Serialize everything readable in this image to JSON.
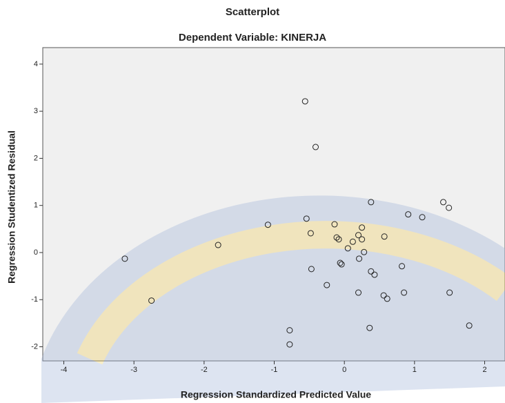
{
  "chart_data": {
    "type": "scatter",
    "title": "Scatterplot",
    "subtitle": "Dependent Variable: KINERJA",
    "x_label": "Regression Standardized Predicted Value",
    "y_label": "Regression Studentized Residual",
    "xlim": [
      -4.3,
      2.29
    ],
    "ylim": [
      -2.3,
      4.35
    ],
    "xticks": [
      -4,
      -3,
      -2,
      -1,
      0,
      1,
      2
    ],
    "yticks": [
      -2,
      -1,
      0,
      1,
      2,
      3,
      4
    ],
    "grid": false,
    "color": "#222222",
    "x": [
      -3.13,
      -2.75,
      -1.8,
      -1.09,
      -0.78,
      -0.78,
      -0.56,
      -0.41,
      -0.54,
      -0.48,
      -0.47,
      -0.14,
      -0.11,
      -0.08,
      -0.06,
      -0.04,
      -0.25,
      0.05,
      0.12,
      0.2,
      0.25,
      0.25,
      0.28,
      0.21,
      0.2,
      0.38,
      0.38,
      0.43,
      0.56,
      0.61,
      0.36,
      0.57,
      0.82,
      0.85,
      0.91,
      1.11,
      1.41,
      1.49,
      1.5,
      1.78
    ],
    "values": [
      -0.13,
      -1.02,
      0.16,
      0.59,
      -1.65,
      -1.95,
      3.21,
      2.24,
      0.72,
      0.41,
      -0.35,
      0.6,
      0.32,
      0.28,
      -0.22,
      -0.25,
      -0.69,
      0.09,
      0.23,
      0.37,
      0.53,
      0.28,
      0.01,
      -0.13,
      -0.85,
      1.07,
      -0.4,
      -0.47,
      -0.91,
      -0.98,
      -1.6,
      0.34,
      -0.29,
      -0.85,
      0.81,
      0.75,
      1.07,
      0.95,
      -0.85,
      -1.55
    ]
  }
}
